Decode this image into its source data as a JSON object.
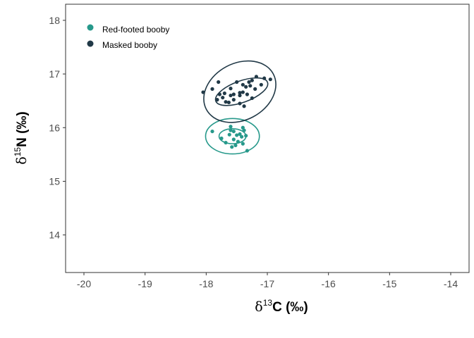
{
  "chart_data": {
    "type": "scatter",
    "x_axis": {
      "symbol": "δ",
      "superscript": "13",
      "element": "C",
      "unit": " (‰)",
      "range": [
        -20.3,
        -13.7
      ],
      "ticks": [
        -20,
        -19,
        -18,
        -17,
        -16,
        -15,
        -14
      ],
      "tick_labels": [
        "-20",
        "-19",
        "-18",
        "-17",
        "-16",
        "-15",
        "-14"
      ]
    },
    "y_axis": {
      "symbol": "δ",
      "superscript": "15",
      "element": "N",
      "unit": " (‰)",
      "range": [
        13.3,
        18.3
      ],
      "ticks": [
        14,
        15,
        16,
        17,
        18
      ],
      "tick_labels": [
        "14",
        "15",
        "16",
        "17",
        "18"
      ]
    },
    "grid": false,
    "legend_position": "top-left",
    "series": [
      {
        "name": "Red-footed booby",
        "color": "#27998b",
        "points": [
          [
            -17.9,
            15.93
          ],
          [
            -17.75,
            15.8
          ],
          [
            -17.68,
            15.72
          ],
          [
            -17.62,
            15.87
          ],
          [
            -17.6,
            16.02
          ],
          [
            -17.58,
            15.64
          ],
          [
            -17.55,
            15.93
          ],
          [
            -17.55,
            15.78
          ],
          [
            -17.5,
            15.86
          ],
          [
            -17.48,
            15.74
          ],
          [
            -17.45,
            15.88
          ],
          [
            -17.42,
            15.83
          ],
          [
            -17.4,
            16.0
          ],
          [
            -17.4,
            15.7
          ],
          [
            -17.35,
            15.85
          ],
          [
            -17.33,
            15.57
          ],
          [
            -17.38,
            15.95
          ],
          [
            -17.6,
            15.95
          ],
          [
            -17.52,
            15.67
          ]
        ],
        "ellipse_inner": {
          "cx": -17.57,
          "cy": 15.84,
          "rx": 0.22,
          "ry": 0.14,
          "angle_deg": 0
        },
        "ellipse_outer": {
          "cx": -17.57,
          "cy": 15.84,
          "rx": 0.44,
          "ry": 0.33,
          "angle_deg": 0
        }
      },
      {
        "name": "Masked booby",
        "color": "#213947",
        "points": [
          [
            -18.05,
            16.66
          ],
          [
            -17.9,
            16.72
          ],
          [
            -17.82,
            16.52
          ],
          [
            -17.8,
            16.85
          ],
          [
            -17.78,
            16.62
          ],
          [
            -17.73,
            16.56
          ],
          [
            -17.7,
            16.64
          ],
          [
            -17.68,
            16.48
          ],
          [
            -17.63,
            16.47
          ],
          [
            -17.6,
            16.73
          ],
          [
            -17.6,
            16.6
          ],
          [
            -17.55,
            16.62
          ],
          [
            -17.5,
            16.85
          ],
          [
            -17.45,
            16.65
          ],
          [
            -17.45,
            16.45
          ],
          [
            -17.4,
            16.8
          ],
          [
            -17.4,
            16.66
          ],
          [
            -17.38,
            16.4
          ],
          [
            -17.35,
            16.76
          ],
          [
            -17.33,
            16.62
          ],
          [
            -17.3,
            16.85
          ],
          [
            -17.28,
            16.78
          ],
          [
            -17.25,
            16.55
          ],
          [
            -17.25,
            16.88
          ],
          [
            -17.2,
            16.72
          ],
          [
            -17.18,
            16.95
          ],
          [
            -17.1,
            16.8
          ],
          [
            -17.05,
            16.92
          ],
          [
            -16.95,
            16.9
          ],
          [
            -17.45,
            16.6
          ],
          [
            -17.55,
            16.52
          ]
        ],
        "ellipse_inner": {
          "cx": -17.42,
          "cy": 16.67,
          "rx": 0.45,
          "ry": 0.2,
          "angle_deg": 20
        },
        "ellipse_outer": {
          "cx": -17.45,
          "cy": 16.67,
          "rx": 0.62,
          "ry": 0.53,
          "angle_deg": 28
        }
      }
    ]
  }
}
